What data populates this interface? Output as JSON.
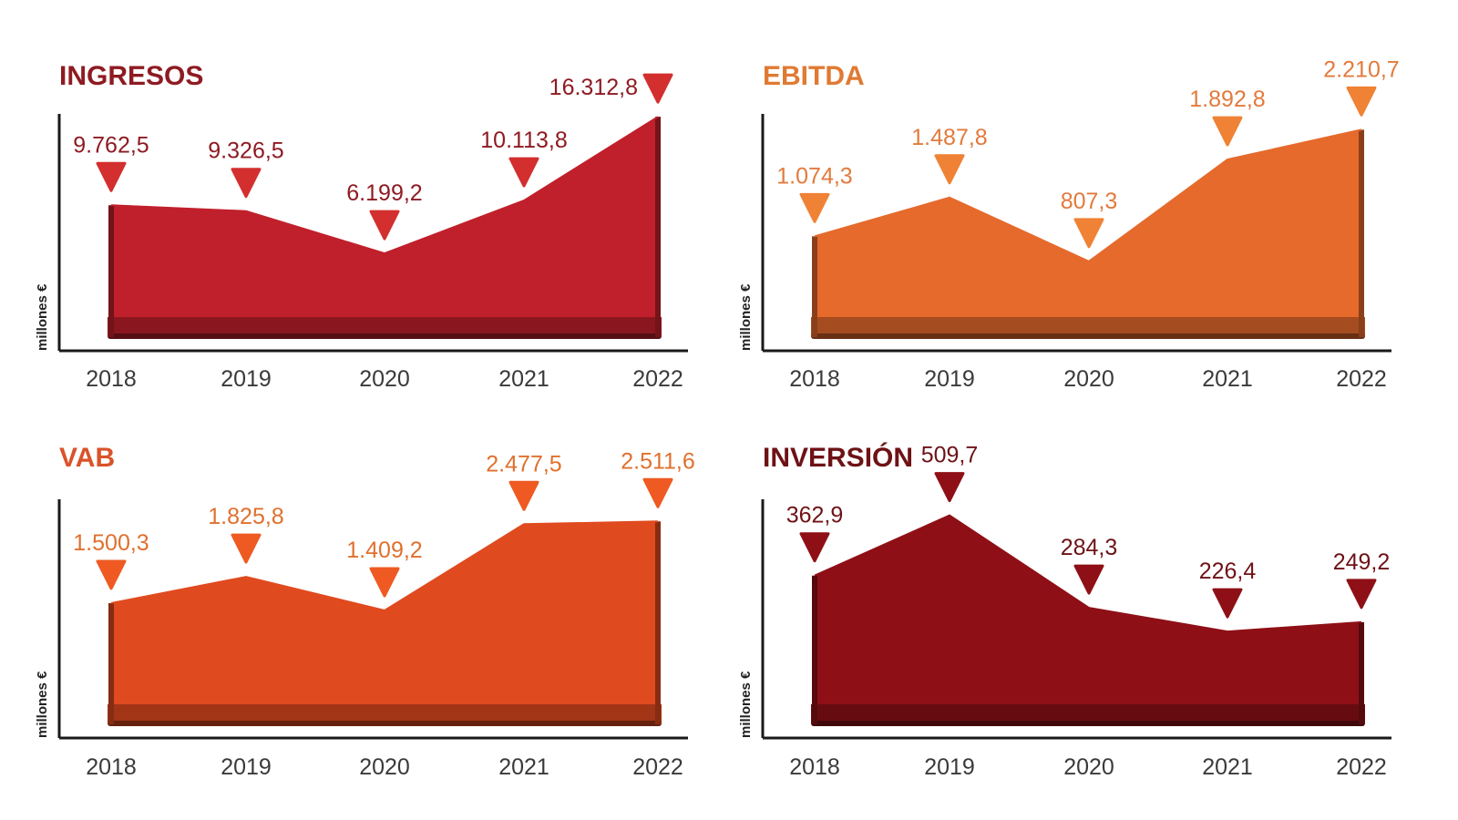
{
  "units_label": "millones €",
  "chart_data": [
    {
      "type": "area",
      "title": "INGRESOS",
      "ylabel": "millones €",
      "color": "#c0202b",
      "label_color": "#8e1b22",
      "marker_color": "#d32f2f",
      "categories": [
        "2018",
        "2019",
        "2020",
        "2021",
        "2022"
      ],
      "values": [
        9762.5,
        9326.5,
        6199.2,
        10113.8,
        16312.8
      ],
      "labels": [
        "9.762,5",
        "9.326,5",
        "6.199,2",
        "10.113,8",
        "16.312,8"
      ],
      "ylim": [
        0,
        17000
      ],
      "grid": false
    },
    {
      "type": "area",
      "title": "EBITDA",
      "ylabel": "millones €",
      "color": "#e56a2c",
      "label_color": "#e27a3c",
      "marker_color": "#ef8235",
      "categories": [
        "2018",
        "2019",
        "2020",
        "2021",
        "2022"
      ],
      "values": [
        1074.3,
        1487.8,
        807.3,
        1892.8,
        2210.7
      ],
      "labels": [
        "1.074,3",
        "1.487,8",
        "807,3",
        "1.892,8",
        "2.210,7"
      ],
      "ylim": [
        0,
        2350
      ],
      "grid": false
    },
    {
      "type": "area",
      "title": "VAB",
      "ylabel": "millones €",
      "color": "#e04a1f",
      "label_color": "#e0702e",
      "marker_color": "#ee5a22",
      "categories": [
        "2018",
        "2019",
        "2020",
        "2021",
        "2022"
      ],
      "values": [
        1500.3,
        1825.8,
        1409.2,
        2477.5,
        2511.6
      ],
      "labels": [
        "1.500,3",
        "1.825,8",
        "1.409,2",
        "2.477,5",
        "2.511,6"
      ],
      "ylim": [
        0,
        2650
      ],
      "grid": false
    },
    {
      "type": "area",
      "title": "INVERSIÓN",
      "ylabel": "millones €",
      "color": "#8e1016",
      "label_color": "#6e1216",
      "marker_color": "#8e1016",
      "categories": [
        "2018",
        "2019",
        "2020",
        "2021",
        "2022"
      ],
      "values": [
        362.9,
        509.7,
        284.3,
        226.4,
        249.2
      ],
      "labels": [
        "362,9",
        "509,7",
        "284,3",
        "226,4",
        "249,2"
      ],
      "ylim": [
        0,
        540
      ],
      "grid": false
    }
  ]
}
